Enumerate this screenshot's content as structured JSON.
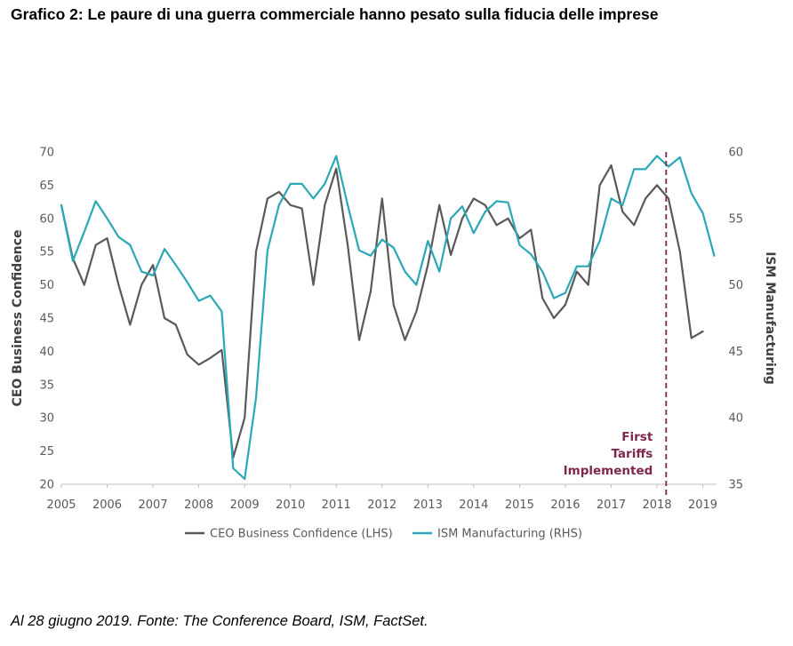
{
  "title": "Grafico 2: Le paure di una guerra commerciale hanno pesato sulla fiducia delle imprese",
  "caption": "Al 28 giugno 2019. Fonte: The Conference Board, ISM, FactSet.",
  "chart_data": {
    "type": "line",
    "xlabel": "",
    "x_ticks": [
      "2005",
      "2006",
      "2007",
      "2008",
      "2009",
      "2010",
      "2011",
      "2012",
      "2013",
      "2014",
      "2015",
      "2016",
      "2017",
      "2018",
      "2019"
    ],
    "xlim": [
      2005,
      2019.3
    ],
    "ylabel_left": "CEO Business Confidence",
    "ylim_left": [
      20,
      70
    ],
    "yticks_left": [
      "20",
      "25",
      "30",
      "35",
      "40",
      "45",
      "50",
      "55",
      "60",
      "65",
      "70"
    ],
    "ylabel_right": "ISM Manufacturing",
    "ylim_right": [
      35,
      60
    ],
    "yticks_right": [
      "35",
      "40",
      "45",
      "50",
      "55",
      "60"
    ],
    "series": [
      {
        "name": "CEO Business Confidence (LHS)",
        "axis": "left",
        "color": "#595959",
        "x": [
          2005.0,
          2005.25,
          2005.5,
          2005.75,
          2006.0,
          2006.25,
          2006.5,
          2006.75,
          2007.0,
          2007.25,
          2007.5,
          2007.75,
          2008.0,
          2008.25,
          2008.5,
          2008.75,
          2009.0,
          2009.25,
          2009.5,
          2009.75,
          2010.0,
          2010.25,
          2010.5,
          2010.75,
          2011.0,
          2011.25,
          2011.5,
          2011.75,
          2012.0,
          2012.25,
          2012.5,
          2012.75,
          2013.0,
          2013.25,
          2013.5,
          2013.75,
          2014.0,
          2014.25,
          2014.5,
          2014.75,
          2015.0,
          2015.25,
          2015.5,
          2015.75,
          2016.0,
          2016.25,
          2016.5,
          2016.75,
          2017.0,
          2017.25,
          2017.5,
          2017.75,
          2018.0,
          2018.25,
          2018.5,
          2018.75,
          2019.0
        ],
        "values": [
          62,
          54,
          50,
          56,
          57,
          50,
          44,
          50,
          53,
          45,
          44,
          39.5,
          38,
          39,
          40.2,
          24,
          30,
          55,
          63,
          64,
          62,
          61.5,
          50,
          62,
          67.5,
          56,
          41.7,
          49,
          63,
          47,
          41.7,
          46,
          53,
          62,
          54.5,
          60,
          63,
          62,
          59,
          60,
          57,
          58.3,
          48,
          45,
          47,
          52,
          50,
          65,
          68,
          61,
          59,
          63,
          65,
          63,
          55,
          42,
          43
        ]
      },
      {
        "name": "ISM Manufacturing (RHS)",
        "axis": "right",
        "color": "#2aa8b5",
        "x": [
          2005.0,
          2005.25,
          2005.5,
          2005.75,
          2006.0,
          2006.25,
          2006.5,
          2006.75,
          2007.0,
          2007.25,
          2007.5,
          2007.75,
          2008.0,
          2008.25,
          2008.5,
          2008.75,
          2009.0,
          2009.25,
          2009.5,
          2009.75,
          2010.0,
          2010.25,
          2010.5,
          2010.75,
          2011.0,
          2011.25,
          2011.5,
          2011.75,
          2012.0,
          2012.25,
          2012.5,
          2012.75,
          2013.0,
          2013.25,
          2013.5,
          2013.75,
          2014.0,
          2014.25,
          2014.5,
          2014.75,
          2015.0,
          2015.25,
          2015.5,
          2015.75,
          2016.0,
          2016.25,
          2016.5,
          2016.75,
          2017.0,
          2017.25,
          2017.5,
          2017.75,
          2018.0,
          2018.25,
          2018.5,
          2018.75,
          2019.0,
          2019.25
        ],
        "values": [
          56,
          51.8,
          54,
          56.3,
          55,
          53.6,
          53,
          51,
          50.7,
          52.7,
          51.5,
          50.2,
          48.8,
          49.2,
          48,
          36.2,
          35.4,
          41.5,
          52.6,
          56,
          57.6,
          57.6,
          56.5,
          57.6,
          59.7,
          56,
          52.6,
          52.2,
          53.4,
          52.8,
          51,
          50,
          53.3,
          51,
          55,
          55.9,
          53.9,
          55.5,
          56.3,
          56.2,
          53,
          52.3,
          51,
          49,
          49.4,
          51.4,
          51.4,
          53.3,
          56.5,
          56,
          58.7,
          58.7,
          59.7,
          58.9,
          59.6,
          56.9,
          55.4,
          52.2
        ]
      }
    ],
    "annotation": {
      "x": 2018.2,
      "lines": [
        "First",
        "Tariffs",
        "Implemented"
      ],
      "color": "#7f2650"
    },
    "legend_position": "bottom",
    "grid": false
  }
}
